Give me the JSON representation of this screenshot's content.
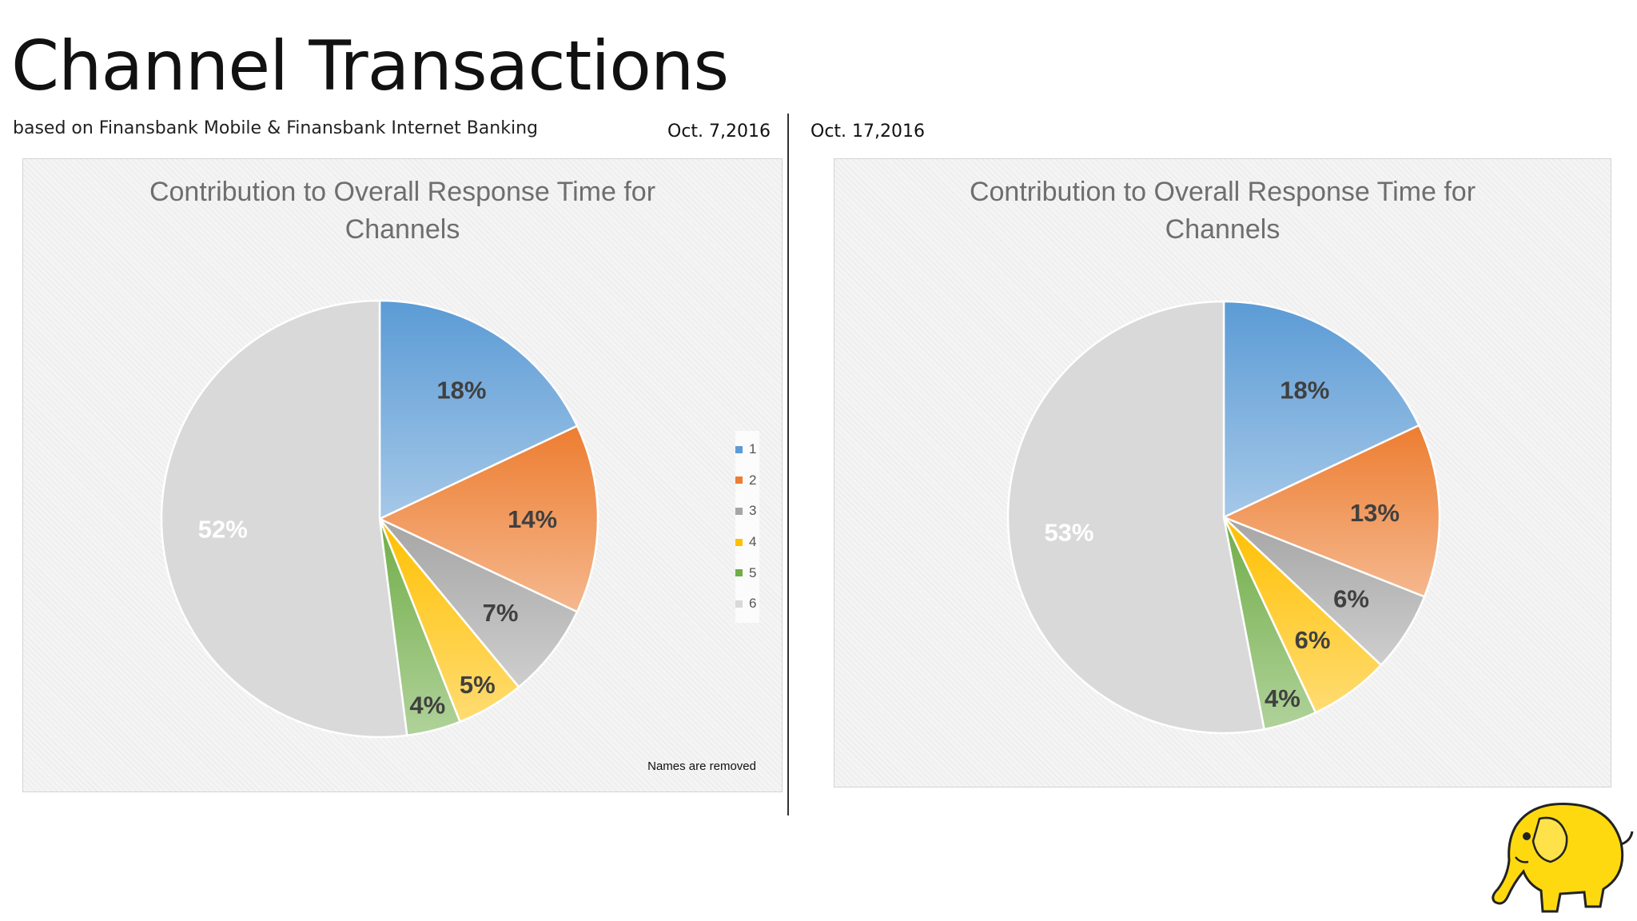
{
  "slide": {
    "title": "Channel Transactions",
    "subtitle": "based on Finansbank Mobile & Finansbank Internet Banking",
    "footnote": "Names are removed"
  },
  "chart_data": [
    {
      "type": "pie",
      "date": "Oct. 7,2016",
      "title_lines": [
        "Contribution to Overall Response Time for",
        "Channels"
      ],
      "categories": [
        "1",
        "2",
        "3",
        "4",
        "5",
        "6"
      ],
      "values": [
        18,
        14,
        7,
        5,
        4,
        52
      ],
      "labels": [
        "18%",
        "14%",
        "7%",
        "5%",
        "4%",
        "52%"
      ],
      "legend": {
        "show": true,
        "position": "right"
      },
      "colors": [
        "#5b9bd5",
        "#ed7d31",
        "#a5a5a5",
        "#ffc000",
        "#70ad47",
        "#d9d9d9"
      ]
    },
    {
      "type": "pie",
      "date": "Oct. 17,2016",
      "title_lines": [
        "Contribution to Overall Response Time for",
        "Channels"
      ],
      "categories": [
        "1",
        "2",
        "3",
        "4",
        "5",
        "6"
      ],
      "values": [
        18,
        13,
        6,
        6,
        4,
        53
      ],
      "labels": [
        "18%",
        "13%",
        "6%",
        "6%",
        "4%",
        "53%"
      ],
      "legend": {
        "show": false
      },
      "colors": [
        "#5b9bd5",
        "#ed7d31",
        "#a5a5a5",
        "#ffc000",
        "#70ad47",
        "#d9d9d9"
      ]
    }
  ],
  "logo": {
    "icon": "yellow-elephant-icon"
  }
}
